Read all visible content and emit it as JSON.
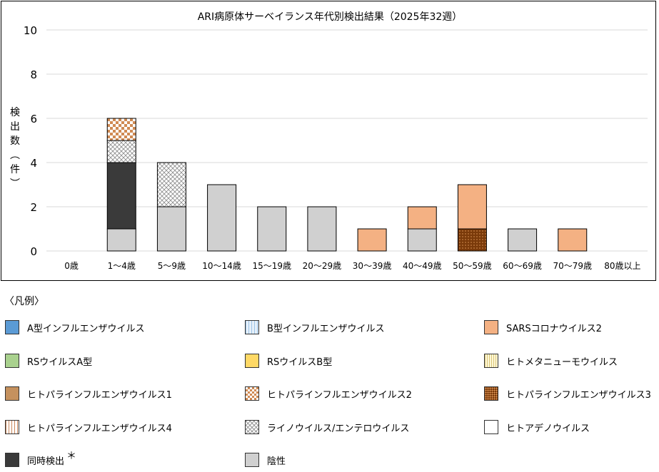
{
  "chart_data": {
    "type": "bar",
    "stacked": true,
    "title": "ARI病原体サーベイランス年代別検出結果（2025年32週）",
    "ylabel": "検出数（件）",
    "xlabel": "",
    "ylim": [
      0,
      10
    ],
    "yticks": [
      0,
      2,
      4,
      6,
      8,
      10
    ],
    "grid": true,
    "categories": [
      "0歳",
      "1～4歳",
      "5～9歳",
      "10～14歳",
      "15～19歳",
      "20～29歳",
      "30～39歳",
      "40～49歳",
      "50～59歳",
      "60～69歳",
      "70～79歳",
      "80歳以上"
    ],
    "series": [
      {
        "name": "陰性",
        "fill": "gray",
        "values": [
          0,
          1,
          2,
          3,
          2,
          2,
          0,
          1,
          0,
          1,
          0,
          0
        ]
      },
      {
        "name": "ヒトパラインフルエンザウイルス3",
        "fill": "darkbrown",
        "values": [
          0,
          0,
          0,
          0,
          0,
          0,
          0,
          0,
          1,
          0,
          0,
          0
        ]
      },
      {
        "name": "同時検出",
        "fill": "dark",
        "values": [
          0,
          3,
          0,
          0,
          0,
          0,
          0,
          0,
          0,
          0,
          0,
          0
        ]
      },
      {
        "name": "ライノウイルス/エンテロウイルス",
        "fill": "crosshatch",
        "values": [
          0,
          1,
          2,
          0,
          0,
          0,
          0,
          0,
          0,
          0,
          0,
          0
        ]
      },
      {
        "name": "ヒトパラインフルエンザウイルス2",
        "fill": "checker",
        "values": [
          0,
          1,
          0,
          0,
          0,
          0,
          0,
          0,
          0,
          0,
          0,
          0
        ]
      },
      {
        "name": "SARSコロナウイルス2",
        "fill": "salmon",
        "values": [
          0,
          0,
          0,
          0,
          0,
          0,
          1,
          1,
          2,
          0,
          1,
          0
        ]
      }
    ]
  },
  "legend": {
    "heading": "〈凡例〉",
    "items": [
      {
        "label": "A型インフルエンザウイルス",
        "swatch": "solid-blue"
      },
      {
        "label": "B型インフルエンザウイルス",
        "swatch": "lightblue"
      },
      {
        "label": "SARSコロナウイルス2",
        "swatch": "salmon"
      },
      {
        "label": "RSウイルスA型",
        "swatch": "green"
      },
      {
        "label": "RSウイルスB型",
        "swatch": "yellow"
      },
      {
        "label": "ヒトメタニューモウイルス",
        "swatch": "cream"
      },
      {
        "label": "ヒトパラインフルエンザウイルス1",
        "swatch": "brown"
      },
      {
        "label": "ヒトパラインフルエンザウイルス2",
        "swatch": "checker"
      },
      {
        "label": "ヒトパラインフルエンザウイルス3",
        "swatch": "darkbrown"
      },
      {
        "label": "ヒトパラインフルエンザウイルス4",
        "swatch": "vstripe"
      },
      {
        "label": "ライノウイルス/エンテロウイルス",
        "swatch": "crosshatch"
      },
      {
        "label": "ヒトアデノウイルス",
        "swatch": "white"
      },
      {
        "label": "同時検出",
        "swatch": "dark",
        "mark": "＊"
      },
      {
        "label": "陰性",
        "swatch": "gray"
      }
    ]
  },
  "colors": {
    "gray": "#d0d0d0",
    "dark": "#3a3a3a",
    "salmon": "#f4b183",
    "checker": "#d08b54",
    "darkbrown": "#7a3a0a",
    "crosshatch": "#999999",
    "grid": "#d9d9d9"
  }
}
